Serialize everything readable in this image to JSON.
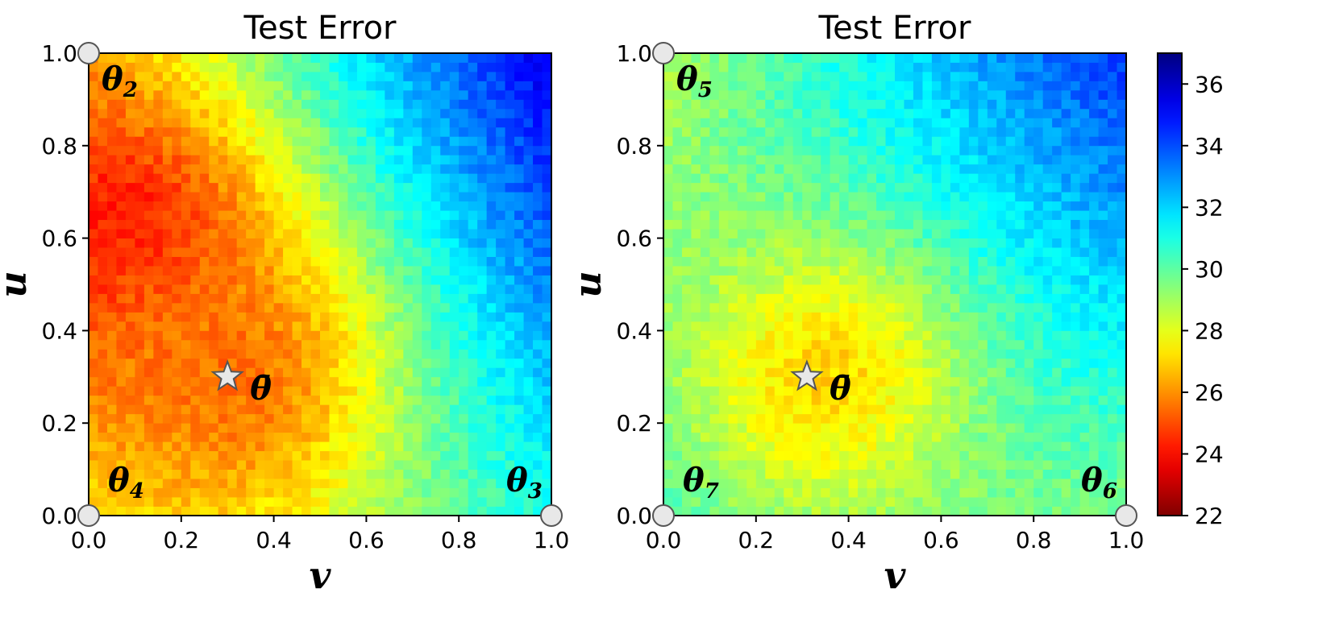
{
  "chart_data": [
    {
      "type": "heatmap",
      "title": "Test Error",
      "xlabel": "v",
      "ylabel": "u",
      "xlim": [
        0,
        1
      ],
      "ylim": [
        0,
        1
      ],
      "xticks": [
        "0.0",
        "0.2",
        "0.4",
        "0.6",
        "0.8",
        "1.0"
      ],
      "yticks": [
        "0.0",
        "0.2",
        "0.4",
        "0.6",
        "0.8",
        "1.0"
      ],
      "grid_resolution": 50,
      "corner_values": {
        "top_left": 26.5,
        "bottom_left": 27.5,
        "bottom_right": 31.0,
        "top_right": 35.5
      },
      "anchors": [
        {
          "x": 0.08,
          "y": 0.6,
          "value": 23.8,
          "spread": 0.22
        },
        {
          "x": 0.3,
          "y": 0.3,
          "value": 25.5,
          "spread": 0.25
        }
      ],
      "endpoints": [
        {
          "label": "θ",
          "sub": "2",
          "x": 0.0,
          "y": 1.0
        },
        {
          "label": "θ",
          "sub": "4",
          "x": 0.0,
          "y": 0.0
        },
        {
          "label": "θ",
          "sub": "3",
          "x": 1.0,
          "y": 0.0
        }
      ],
      "center": {
        "label": "θ̄",
        "x": 0.3,
        "y": 0.3
      }
    },
    {
      "type": "heatmap",
      "title": "Test Error",
      "xlabel": "v",
      "ylabel": "u",
      "xlim": [
        0,
        1
      ],
      "ylim": [
        0,
        1
      ],
      "xticks": [
        "0.0",
        "0.2",
        "0.4",
        "0.6",
        "0.8",
        "1.0"
      ],
      "yticks": [
        "0.0",
        "0.2",
        "0.4",
        "0.6",
        "0.8",
        "1.0"
      ],
      "grid_resolution": 50,
      "corner_values": {
        "top_left": 28.8,
        "bottom_left": 30.5,
        "bottom_right": 29.5,
        "top_right": 34.5
      },
      "anchors": [
        {
          "x": 0.35,
          "y": 0.3,
          "value": 27.0,
          "spread": 0.22
        }
      ],
      "endpoints": [
        {
          "label": "θ",
          "sub": "5",
          "x": 0.0,
          "y": 1.0
        },
        {
          "label": "θ",
          "sub": "7",
          "x": 0.0,
          "y": 0.0
        },
        {
          "label": "θ",
          "sub": "6",
          "x": 1.0,
          "y": 0.0
        }
      ],
      "center": {
        "label": "θ̄",
        "x": 0.31,
        "y": 0.3
      }
    }
  ],
  "colorbar": {
    "colormap": "jet_r",
    "min": 22,
    "max": 37,
    "ticks": [
      "22",
      "24",
      "26",
      "28",
      "30",
      "32",
      "34",
      "36"
    ]
  },
  "colors": {
    "axis": "#000000",
    "marker_fill": "#e8e8e8",
    "marker_edge": "#555555"
  }
}
